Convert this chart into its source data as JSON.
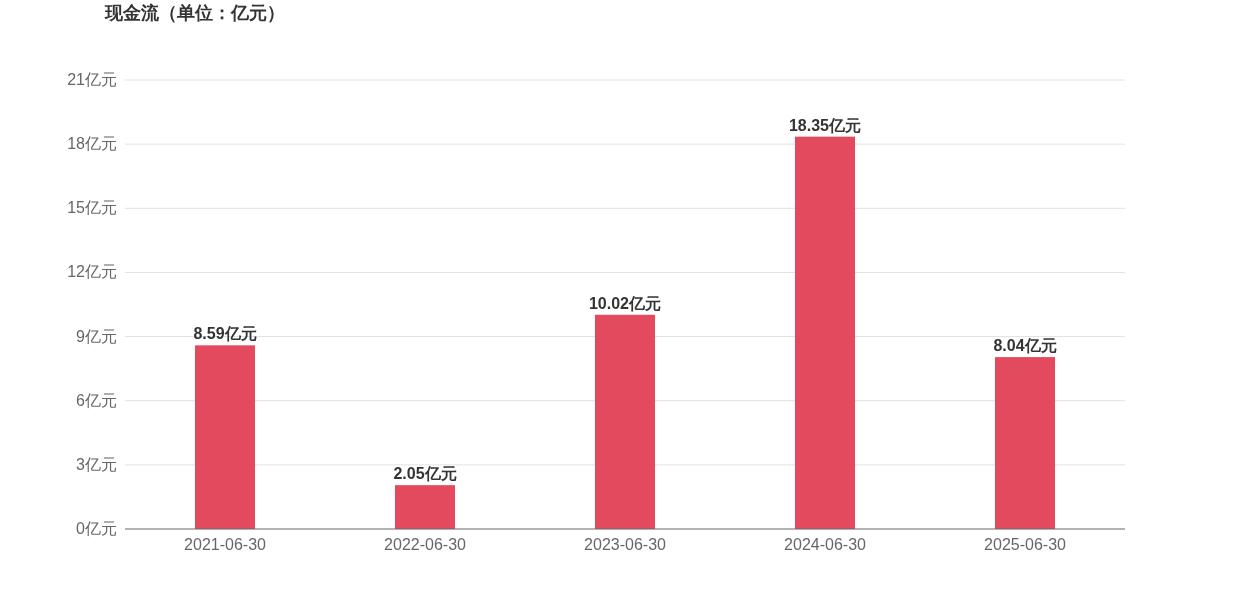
{
  "chart_data": {
    "type": "bar",
    "title": "现金流（单位：亿元）",
    "categories": [
      "2021-06-30",
      "2022-06-30",
      "2023-06-30",
      "2024-06-30",
      "2025-06-30"
    ],
    "values": [
      8.59,
      2.05,
      10.02,
      18.35,
      8.04
    ],
    "value_labels": [
      "8.59亿元",
      "2.05亿元",
      "10.02亿元",
      "18.35亿元",
      "8.04亿元"
    ],
    "color": "#e34a5e",
    "ylim": [
      0,
      21
    ],
    "yticks": [
      {
        "value": 0,
        "label": "0亿元"
      },
      {
        "value": 3,
        "label": "3亿元"
      },
      {
        "value": 6,
        "label": "6亿元"
      },
      {
        "value": 9,
        "label": "9亿元"
      },
      {
        "value": 12,
        "label": "12亿元"
      },
      {
        "value": 15,
        "label": "15亿元"
      },
      {
        "value": 18,
        "label": "18亿元"
      },
      {
        "value": 21,
        "label": "21亿元"
      }
    ],
    "grid": "y"
  }
}
